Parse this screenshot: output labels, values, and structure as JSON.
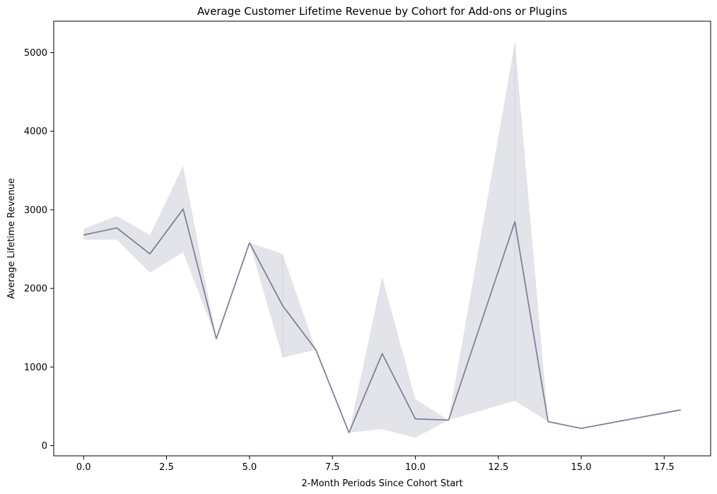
{
  "chart_data": {
    "type": "line",
    "title": "Average Customer Lifetime Revenue by Cohort for Add-ons or Plugins",
    "xlabel": "2-Month Periods Since Cohort Start",
    "ylabel": "Average Lifetime Revenue",
    "xlim": [
      -0.9,
      18.9
    ],
    "ylim": [
      -130,
      5400
    ],
    "x_ticks": [
      0,
      2.5,
      5,
      7.5,
      10,
      12.5,
      15,
      17.5
    ],
    "x_tick_labels": [
      "0.0",
      "2.5",
      "5.0",
      "7.5",
      "10.0",
      "12.5",
      "15.0",
      "17.5"
    ],
    "y_ticks": [
      0,
      1000,
      2000,
      3000,
      4000,
      5000
    ],
    "y_tick_labels": [
      "0",
      "1000",
      "2000",
      "3000",
      "4000",
      "5000"
    ],
    "grid": false,
    "colors": {
      "line": "#7f8099",
      "band": "#c8c9d6"
    },
    "series": [
      {
        "x": [
          0,
          1,
          2,
          3,
          4,
          5,
          6,
          7,
          8,
          9,
          10,
          11,
          13,
          14,
          15,
          18
        ],
        "y": [
          2680,
          2770,
          2440,
          3010,
          1360,
          2580,
          1780,
          1220,
          165,
          1170,
          340,
          325,
          2850,
          305,
          220,
          455
        ],
        "ci_lower": [
          2620,
          2620,
          2200,
          2460,
          1360,
          2580,
          1120,
          1220,
          165,
          210,
          100,
          325,
          570,
          305,
          220,
          455
        ],
        "ci_upper": [
          2760,
          2920,
          2680,
          3560,
          1360,
          2580,
          2440,
          1220,
          165,
          2150,
          590,
          325,
          5130,
          305,
          220,
          455
        ]
      }
    ]
  }
}
